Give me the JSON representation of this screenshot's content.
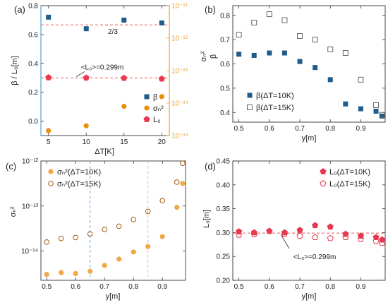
{
  "chart_data": [
    {
      "panel": "(a)",
      "type": "scatter",
      "xlabel": "ΔT[K]",
      "ylabel": "β / L₀[m]",
      "y2label": "",
      "x_ticks": [
        "5",
        "10",
        "15",
        "20"
      ],
      "xlim": [
        4,
        21
      ],
      "ylim": [
        -0.1,
        0.8
      ],
      "y_ticks": [
        "0.0",
        "0.2",
        "0.4",
        "0.6",
        "0.8"
      ],
      "y2_scale": "log",
      "y2lim_exp": [
        -15,
        -11
      ],
      "y2_ticks": [
        "10⁻¹⁵",
        "10⁻¹⁴",
        "10⁻¹³",
        "10⁻¹²",
        "10⁻¹¹"
      ],
      "y2_color": "#e8a33d",
      "hlines": [
        {
          "y": 0.667,
          "color": "#e15759",
          "label": "2/3"
        },
        {
          "y": 0.299,
          "color": "#e15759",
          "label": "<L₀>=0.299m"
        }
      ],
      "series": [
        {
          "name": "β",
          "marker": "square",
          "color": "#1f5c8b",
          "x": [
            5,
            10,
            15,
            20
          ],
          "y": [
            0.72,
            0.64,
            0.7,
            0.68
          ]
        },
        {
          "name": "σₙ²",
          "marker": "circle",
          "color": "#e8900c",
          "axis": "y2",
          "x": [
            5,
            10,
            15,
            20
          ],
          "y_exp": [
            -14.85,
            -14.7,
            -14.1,
            -13.8
          ]
        },
        {
          "name": "L₀",
          "marker": "pentagon",
          "color": "#e8384f",
          "x": [
            5,
            10,
            15,
            20
          ],
          "y": [
            0.302,
            0.3,
            0.298,
            0.293
          ]
        }
      ]
    },
    {
      "panel": "(b)",
      "type": "scatter",
      "xlabel": "y[m]",
      "ylabel": "β",
      "ylabel2": "σₙ²",
      "xlim": [
        0.48,
        0.98
      ],
      "x_ticks": [
        "0.5",
        "0.6",
        "0.7",
        "0.8",
        "0.9"
      ],
      "ylim": [
        0.36,
        0.84
      ],
      "y_ticks": [
        "0.4",
        "0.5",
        "0.6",
        "0.7",
        "0.8"
      ],
      "series": [
        {
          "name": "β(ΔT=10K)",
          "marker": "square-filled",
          "color": "#1f5c8b",
          "x": [
            0.5,
            0.55,
            0.6,
            0.65,
            0.7,
            0.75,
            0.8,
            0.85,
            0.9,
            0.95,
            0.97
          ],
          "y": [
            0.64,
            0.635,
            0.645,
            0.645,
            0.61,
            0.585,
            0.535,
            0.435,
            0.415,
            0.405,
            0.385
          ]
        },
        {
          "name": "β(ΔT=15K)",
          "marker": "square-open",
          "color": "#666666",
          "x": [
            0.5,
            0.55,
            0.6,
            0.65,
            0.7,
            0.75,
            0.8,
            0.85,
            0.9,
            0.95,
            0.97
          ],
          "y": [
            0.72,
            0.77,
            0.805,
            0.78,
            0.715,
            0.7,
            0.66,
            0.645,
            0.535,
            0.43,
            0.39
          ]
        }
      ]
    },
    {
      "panel": "(c)",
      "type": "scatter",
      "xlabel": "y[m]",
      "ylabel": "σₙ²",
      "xlim": [
        0.48,
        0.98
      ],
      "x_ticks": [
        "0.5",
        "0.6",
        "0.7",
        "0.8",
        "0.9"
      ],
      "y_scale": "log",
      "ylim_exp": [
        -14.65,
        -12
      ],
      "y_ticks": [
        "10⁻¹⁴",
        "10⁻¹³",
        "10⁻¹²"
      ],
      "vlines": [
        {
          "x": 0.65,
          "color": "#6fa8dc"
        },
        {
          "x": 0.85,
          "color": "#f4a9a8"
        }
      ],
      "series": [
        {
          "name": "σₙ²(ΔT=10K)",
          "marker": "circle-filled",
          "color": "#f0a848",
          "x": [
            0.5,
            0.55,
            0.6,
            0.65,
            0.7,
            0.75,
            0.8,
            0.85,
            0.9,
            0.95,
            0.97
          ],
          "y_exp": [
            -14.52,
            -14.48,
            -14.5,
            -14.45,
            -14.32,
            -14.18,
            -14.02,
            -13.9,
            -13.68,
            -13.03,
            -12.5
          ]
        },
        {
          "name": "σₙ²(ΔT=15K)",
          "marker": "circle-open",
          "color": "#a05a10",
          "x": [
            0.5,
            0.55,
            0.6,
            0.65,
            0.7,
            0.75,
            0.8,
            0.85,
            0.9,
            0.95,
            0.97
          ],
          "y_exp": [
            -13.8,
            -13.72,
            -13.7,
            -13.62,
            -13.52,
            -13.45,
            -13.3,
            -13.12,
            -12.88,
            -12.47,
            -12.05
          ]
        }
      ]
    },
    {
      "panel": "(d)",
      "type": "scatter",
      "xlabel": "y[m]",
      "ylabel": "L₀[m]",
      "xlim": [
        0.48,
        0.98
      ],
      "x_ticks": [
        "0.5",
        "0.6",
        "0.7",
        "0.8",
        "0.9"
      ],
      "ylim": [
        0.2,
        0.45
      ],
      "y_ticks": [
        "0.20",
        "0.25",
        "0.30",
        "0.35",
        "0.40",
        "0.45"
      ],
      "hlines": [
        {
          "y": 0.299,
          "color": "#e15759",
          "label": "<L₀>=0.299m"
        }
      ],
      "series": [
        {
          "name": "L₀(ΔT=10K)",
          "marker": "pentagon-filled",
          "color": "#e8384f",
          "x": [
            0.5,
            0.55,
            0.6,
            0.65,
            0.7,
            0.75,
            0.8,
            0.85,
            0.9,
            0.95,
            0.97
          ],
          "y": [
            0.302,
            0.3,
            0.303,
            0.3,
            0.305,
            0.315,
            0.312,
            0.297,
            0.293,
            0.29,
            0.285
          ]
        },
        {
          "name": "L₀(ΔT=15K)",
          "marker": "pentagon-open",
          "color": "#e8384f",
          "x": [
            0.5,
            0.55,
            0.6,
            0.65,
            0.7,
            0.75,
            0.8,
            0.85,
            0.9,
            0.95,
            0.97
          ],
          "y": [
            0.295,
            0.296,
            0.303,
            0.297,
            0.293,
            0.29,
            0.288,
            0.29,
            0.286,
            0.282,
            0.278
          ]
        }
      ]
    }
  ]
}
